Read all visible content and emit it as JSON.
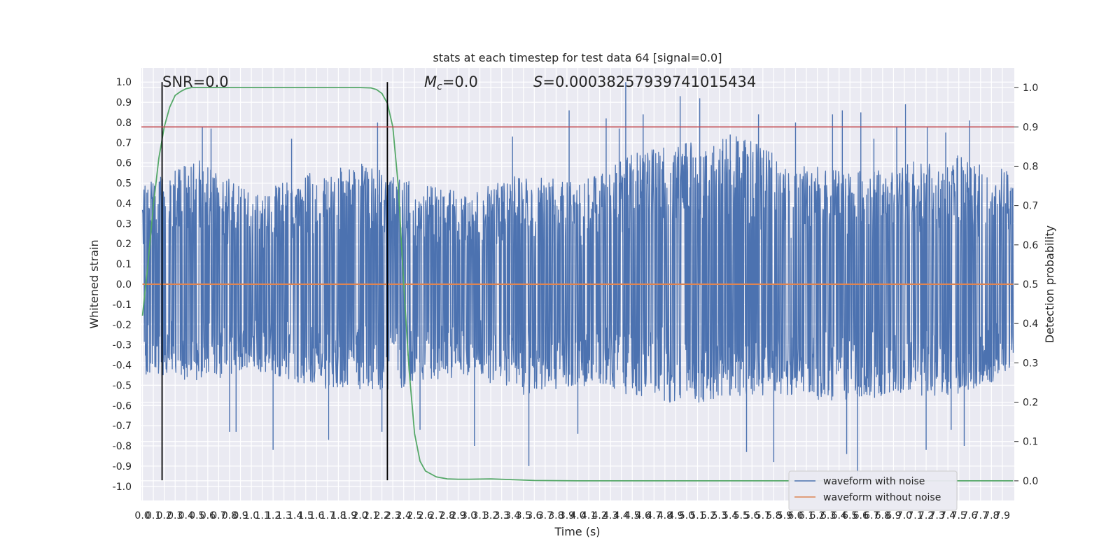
{
  "chart_data": {
    "type": "line",
    "title": "stats at each timestep for test data 64 [signal=0.0]",
    "xlabel": "Time (s)",
    "ylabel": "Whitened strain",
    "y2label": "Detection probability",
    "xlim": [
      -0.01,
      8.01
    ],
    "ylim": [
      -1.07,
      1.07
    ],
    "y2lim": [
      -0.05,
      1.05
    ],
    "x_ticks": [
      "0.0",
      "0.1",
      "0.2",
      "0.3",
      "0.4",
      "0.5",
      "0.6",
      "0.7",
      "0.8",
      "0.9",
      "1.0",
      "1.1",
      "1.2",
      "1.3",
      "1.4",
      "1.5",
      "1.6",
      "1.7",
      "1.8",
      "1.9",
      "2.0",
      "2.1",
      "2.2",
      "2.3",
      "2.4",
      "2.5",
      "2.6",
      "2.7",
      "2.8",
      "2.9",
      "3.0",
      "3.1",
      "3.2",
      "3.3",
      "3.4",
      "3.5",
      "3.6",
      "3.7",
      "3.8",
      "3.9",
      "4.0",
      "4.1",
      "4.2",
      "4.3",
      "4.4",
      "4.5",
      "4.6",
      "4.7",
      "4.8",
      "4.9",
      "5.0",
      "5.1",
      "5.2",
      "5.3",
      "5.4",
      "5.5",
      "5.6",
      "5.7",
      "5.8",
      "5.9",
      "6.0",
      "6.1",
      "6.2",
      "6.3",
      "6.4",
      "6.5",
      "6.6",
      "6.7",
      "6.8",
      "6.9",
      "7.0",
      "7.1",
      "7.2",
      "7.3",
      "7.4",
      "7.5",
      "7.6",
      "7.7",
      "7.8",
      "7.9"
    ],
    "y_ticks": [
      "-1.0",
      "-0.9",
      "-0.8",
      "-0.7",
      "-0.6",
      "-0.5",
      "-0.4",
      "-0.3",
      "-0.2",
      "-0.1",
      "0.0",
      "0.1",
      "0.2",
      "0.3",
      "0.4",
      "0.5",
      "0.6",
      "0.7",
      "0.8",
      "0.9",
      "1.0"
    ],
    "y2_ticks": [
      "0.0",
      "0.1",
      "0.2",
      "0.3",
      "0.4",
      "0.5",
      "0.6",
      "0.7",
      "0.8",
      "0.9",
      "1.0"
    ],
    "grid": true,
    "legend_position": "lower-right",
    "annotations": {
      "snr": "SNR=0.0",
      "mc_symbol": "M",
      "mc_sub": "c",
      "mc_value": "=0.0",
      "s_symbol": "S",
      "s_value": "=0.00038257939741015434"
    },
    "vlines_x": [
      0.18,
      2.25
    ],
    "threshold_y2": 0.9,
    "series": [
      {
        "name": "waveform with noise",
        "color": "#4c72b0",
        "axis": "left",
        "seed": 64,
        "envelope_pos": [
          0.5,
          0.62,
          0.45,
          0.55,
          0.6,
          0.5,
          0.45,
          0.55,
          0.5,
          0.65,
          0.7,
          0.75,
          0.6,
          0.55,
          0.6,
          0.65,
          0.55
        ],
        "envelope_neg": [
          -0.45,
          -0.5,
          -0.42,
          -0.5,
          -0.55,
          -0.5,
          -0.45,
          -0.55,
          -0.5,
          -0.55,
          -0.6,
          -0.55,
          -0.55,
          -0.6,
          -0.55,
          -0.55,
          -0.45
        ],
        "spikes": [
          {
            "x": 0.55,
            "y": 0.78
          },
          {
            "x": 0.63,
            "y": 0.77
          },
          {
            "x": 1.37,
            "y": 0.72
          },
          {
            "x": 2.16,
            "y": 0.8
          },
          {
            "x": 3.4,
            "y": 0.73
          },
          {
            "x": 3.92,
            "y": 0.86
          },
          {
            "x": 4.26,
            "y": 0.82
          },
          {
            "x": 4.38,
            "y": 0.77
          },
          {
            "x": 4.44,
            "y": 1.0
          },
          {
            "x": 4.6,
            "y": 0.84
          },
          {
            "x": 4.94,
            "y": 0.93
          },
          {
            "x": 5.12,
            "y": 0.92
          },
          {
            "x": 5.4,
            "y": 0.74
          },
          {
            "x": 5.66,
            "y": 0.84
          },
          {
            "x": 6.0,
            "y": 0.8
          },
          {
            "x": 6.34,
            "y": 0.84
          },
          {
            "x": 6.43,
            "y": 0.86
          },
          {
            "x": 6.6,
            "y": 0.85
          },
          {
            "x": 6.72,
            "y": 0.72
          },
          {
            "x": 6.93,
            "y": 0.78
          },
          {
            "x": 7.01,
            "y": 0.89
          },
          {
            "x": 7.21,
            "y": 0.78
          },
          {
            "x": 7.38,
            "y": 0.75
          },
          {
            "x": 7.6,
            "y": 0.81
          },
          {
            "x": 1.2,
            "y": -0.82
          },
          {
            "x": 0.8,
            "y": -0.73
          },
          {
            "x": 0.86,
            "y": -0.73
          },
          {
            "x": 1.71,
            "y": -0.77
          },
          {
            "x": 2.2,
            "y": -0.73
          },
          {
            "x": 2.55,
            "y": -0.72
          },
          {
            "x": 3.05,
            "y": -0.8
          },
          {
            "x": 3.55,
            "y": -0.9
          },
          {
            "x": 4.0,
            "y": -0.74
          },
          {
            "x": 5.55,
            "y": -0.83
          },
          {
            "x": 5.8,
            "y": -0.88
          },
          {
            "x": 6.47,
            "y": -0.84
          },
          {
            "x": 6.57,
            "y": -0.95
          },
          {
            "x": 7.2,
            "y": -0.82
          },
          {
            "x": 7.43,
            "y": -0.72
          },
          {
            "x": 7.55,
            "y": -0.8
          }
        ]
      },
      {
        "name": "waveform without noise",
        "color": "#dd8452",
        "axis": "left",
        "x": [
          0.0,
          8.0
        ],
        "y": [
          0.0,
          0.0
        ]
      },
      {
        "name": "",
        "color": "#55a868",
        "axis": "right",
        "x": [
          0.0,
          0.05,
          0.1,
          0.15,
          0.2,
          0.25,
          0.3,
          0.35,
          0.4,
          0.45,
          0.5,
          0.6,
          1.0,
          1.5,
          2.0,
          2.1,
          2.15,
          2.2,
          2.25,
          2.3,
          2.35,
          2.4,
          2.45,
          2.5,
          2.55,
          2.6,
          2.7,
          2.8,
          2.9,
          3.0,
          3.2,
          3.4,
          3.6,
          4.0,
          5.0,
          6.0,
          7.0,
          8.0
        ],
        "y": [
          0.42,
          0.55,
          0.7,
          0.82,
          0.9,
          0.95,
          0.98,
          0.99,
          0.997,
          1.0,
          1.0,
          1.0,
          1.0,
          1.0,
          1.0,
          0.999,
          0.995,
          0.985,
          0.96,
          0.9,
          0.75,
          0.5,
          0.28,
          0.12,
          0.05,
          0.025,
          0.01,
          0.005,
          0.004,
          0.004,
          0.005,
          0.003,
          0.001,
          0.0,
          0.0,
          0.0,
          0.0,
          0.0
        ]
      }
    ]
  }
}
